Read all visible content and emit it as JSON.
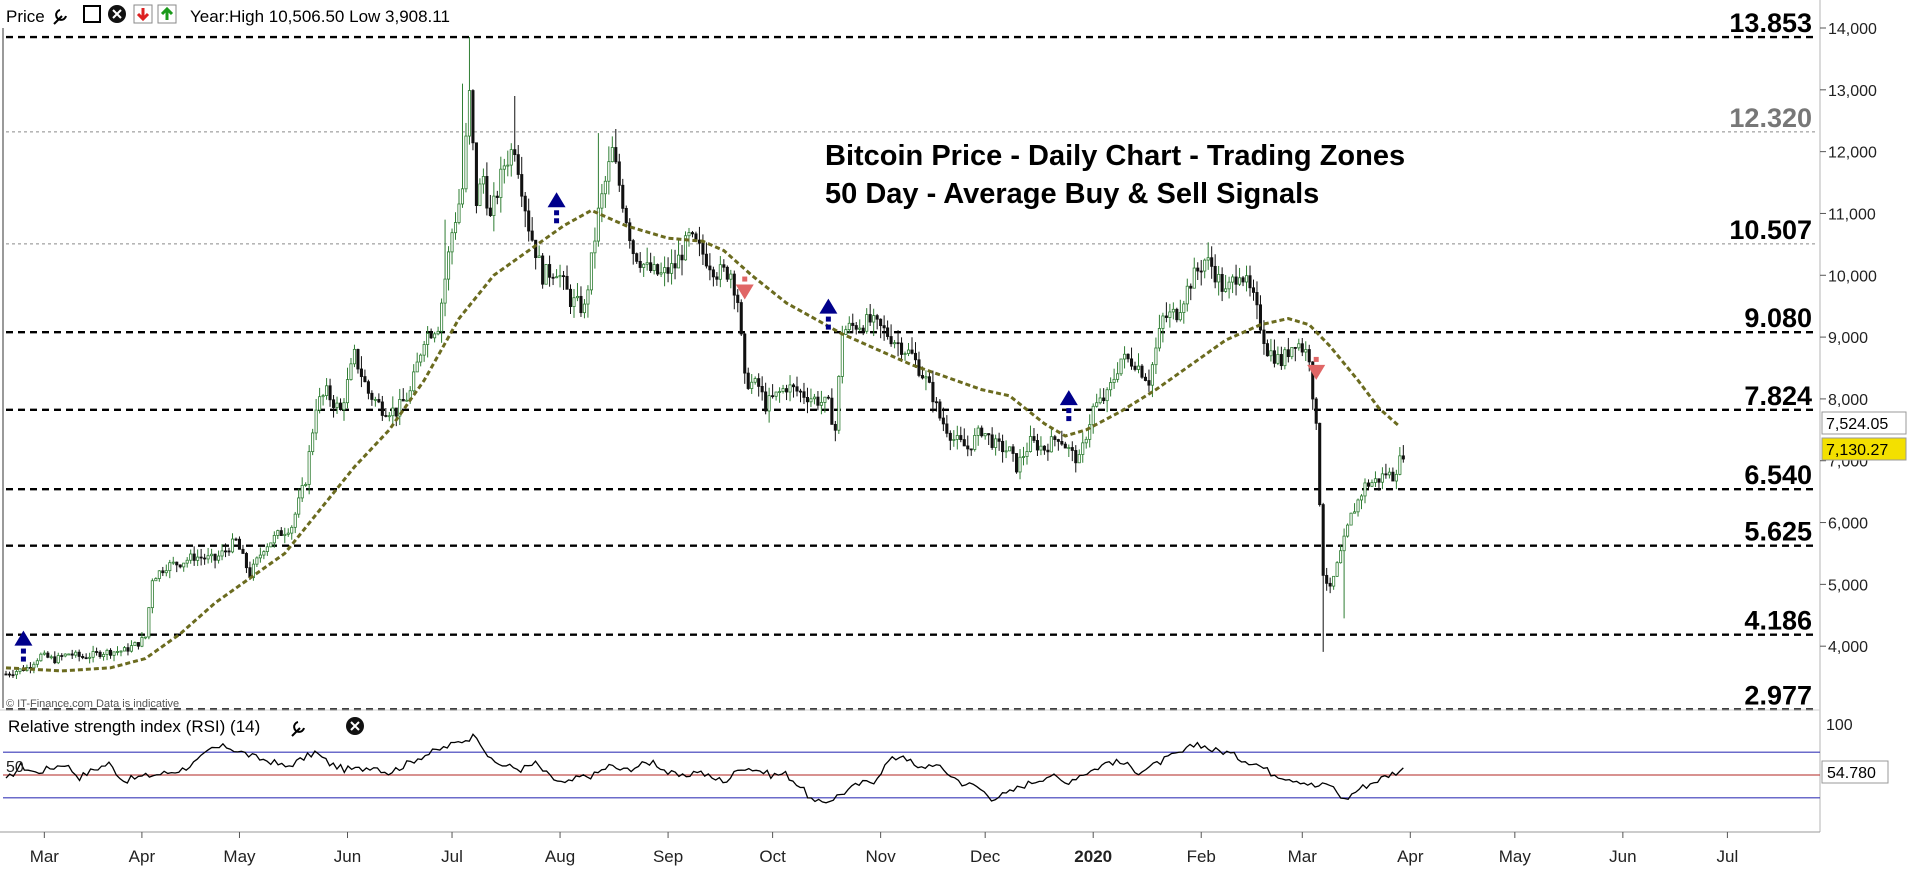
{
  "header": {
    "label": "Price",
    "year_text": "Year:High 10,506.50 Low 3,908.11"
  },
  "watermark": "© IT-Finance.com Data is indicative",
  "rsi": {
    "label": "Relative strength index (RSI) (14)",
    "mid_label": "50",
    "value_label": "54.780",
    "axis_top_label": "100",
    "overbought": 70,
    "oversold": 30,
    "series": [
      45,
      58,
      52,
      56,
      60,
      48,
      55,
      60,
      45,
      48,
      50,
      52,
      55,
      62,
      73,
      75,
      70,
      65,
      62,
      57,
      63,
      70,
      60,
      55,
      55,
      58,
      52,
      58,
      65,
      70,
      75,
      80,
      85,
      62,
      58,
      55,
      60,
      48,
      42,
      48,
      50,
      58,
      54,
      58,
      62,
      52,
      48,
      54,
      47,
      45,
      57,
      55,
      50,
      51,
      40,
      25,
      28,
      35,
      42,
      45,
      62,
      68,
      55,
      60,
      52,
      43,
      40,
      30,
      33,
      40,
      45,
      50,
      43,
      50,
      55,
      62,
      60,
      53,
      58,
      65,
      70,
      78,
      72,
      70,
      64,
      60,
      52,
      48,
      45,
      40,
      42,
      28,
      38,
      44,
      50,
      55
    ]
  },
  "chart_data": {
    "type": "candlestick",
    "title": "Bitcoin Price - Daily Chart - Trading Zones",
    "subtitle": "50 Day - Average Buy & Sell Signals",
    "ylim": [
      3000,
      14000
    ],
    "y_ticks": [
      "14,000",
      "13,000",
      "12,000",
      "11,000",
      "10,000",
      "9,000",
      "8,000",
      "7,000",
      "6,000",
      "5,000",
      "4,000"
    ],
    "y_tick_values": [
      14000,
      13000,
      12000,
      11000,
      10000,
      9000,
      8000,
      7000,
      6000,
      5000,
      4000
    ],
    "x_months": [
      "Mar",
      "Apr",
      "May",
      "Jun",
      "Jul",
      "Aug",
      "Sep",
      "Oct",
      "Nov",
      "Dec",
      "2020",
      "Feb",
      "Mar",
      "Apr",
      "May",
      "Jun",
      "Jul"
    ],
    "x_month_index": [
      11,
      39,
      67,
      98,
      128,
      159,
      190,
      220,
      251,
      281,
      312,
      343,
      372,
      403,
      433,
      464,
      494
    ],
    "x_total": 520,
    "last_index": 401,
    "zones": [
      {
        "label": "13.853",
        "value": 13853,
        "style": "major",
        "color": "#000000"
      },
      {
        "label": "12.320",
        "value": 12320,
        "style": "minor",
        "color": "#777777"
      },
      {
        "label": "10.507",
        "value": 10507,
        "style": "minor",
        "color": "#000000"
      },
      {
        "label": "9.080",
        "value": 9080,
        "style": "major",
        "color": "#000000"
      },
      {
        "label": "7.824",
        "value": 7824,
        "style": "major",
        "color": "#000000"
      },
      {
        "label": "6.540",
        "value": 6540,
        "style": "major",
        "color": "#000000"
      },
      {
        "label": "5.625",
        "value": 5625,
        "style": "major",
        "color": "#000000"
      },
      {
        "label": "4.186",
        "value": 4186,
        "style": "major",
        "color": "#000000"
      },
      {
        "label": "2.977",
        "value": 2977,
        "style": "major",
        "color": "#000000"
      }
    ],
    "price_points": [
      [
        0,
        3550
      ],
      [
        6,
        3650
      ],
      [
        10,
        3850
      ],
      [
        14,
        3780
      ],
      [
        18,
        3880
      ],
      [
        22,
        3820
      ],
      [
        28,
        3900
      ],
      [
        34,
        3930
      ],
      [
        38,
        4050
      ],
      [
        40,
        4150
      ],
      [
        42,
        5100
      ],
      [
        46,
        5300
      ],
      [
        50,
        5350
      ],
      [
        54,
        5450
      ],
      [
        60,
        5400
      ],
      [
        66,
        5700
      ],
      [
        70,
        5150
      ],
      [
        74,
        5600
      ],
      [
        78,
        5800
      ],
      [
        82,
        5950
      ],
      [
        86,
        6700
      ],
      [
        89,
        7900
      ],
      [
        92,
        8100
      ],
      [
        96,
        7800
      ],
      [
        100,
        8700
      ],
      [
        104,
        8100
      ],
      [
        108,
        7850
      ],
      [
        112,
        7800
      ],
      [
        116,
        8100
      ],
      [
        120,
        9000
      ],
      [
        124,
        9200
      ],
      [
        128,
        10700
      ],
      [
        131,
        11400
      ],
      [
        133,
        12900
      ],
      [
        135,
        11200
      ],
      [
        137,
        11600
      ],
      [
        139,
        10900
      ],
      [
        143,
        11800
      ],
      [
        146,
        12100
      ],
      [
        150,
        10800
      ],
      [
        154,
        10000
      ],
      [
        158,
        10100
      ],
      [
        162,
        9600
      ],
      [
        166,
        9450
      ],
      [
        170,
        11000
      ],
      [
        172,
        11500
      ],
      [
        174,
        12000
      ],
      [
        177,
        11200
      ],
      [
        180,
        10400
      ],
      [
        184,
        10100
      ],
      [
        188,
        10000
      ],
      [
        192,
        10150
      ],
      [
        196,
        10600
      ],
      [
        200,
        10350
      ],
      [
        204,
        10050
      ],
      [
        208,
        10050
      ],
      [
        210,
        9600
      ],
      [
        212,
        8300
      ],
      [
        216,
        8200
      ],
      [
        218,
        7900
      ],
      [
        224,
        8200
      ],
      [
        228,
        8100
      ],
      [
        232,
        8000
      ],
      [
        236,
        7900
      ],
      [
        238,
        7500
      ],
      [
        240,
        9100
      ],
      [
        244,
        9200
      ],
      [
        248,
        9250
      ],
      [
        252,
        9100
      ],
      [
        256,
        8900
      ],
      [
        260,
        8700
      ],
      [
        264,
        8300
      ],
      [
        266,
        8050
      ],
      [
        268,
        7700
      ],
      [
        272,
        7350
      ],
      [
        276,
        7200
      ],
      [
        280,
        7500
      ],
      [
        284,
        7250
      ],
      [
        288,
        7150
      ],
      [
        290,
        6900
      ],
      [
        294,
        7300
      ],
      [
        298,
        7200
      ],
      [
        302,
        7400
      ],
      [
        306,
        7100
      ],
      [
        308,
        7000
      ],
      [
        312,
        7850
      ],
      [
        316,
        8050
      ],
      [
        320,
        8650
      ],
      [
        324,
        8600
      ],
      [
        328,
        8300
      ],
      [
        332,
        9300
      ],
      [
        336,
        9400
      ],
      [
        340,
        9900
      ],
      [
        344,
        10250
      ],
      [
        346,
        10150
      ],
      [
        350,
        9700
      ],
      [
        354,
        10100
      ],
      [
        358,
        9600
      ],
      [
        362,
        8800
      ],
      [
        366,
        8600
      ],
      [
        370,
        8950
      ],
      [
        374,
        8700
      ],
      [
        376,
        7500
      ],
      [
        378,
        5200
      ],
      [
        380,
        4900
      ],
      [
        382,
        5300
      ],
      [
        386,
        6100
      ],
      [
        390,
        6600
      ],
      [
        394,
        6700
      ],
      [
        396,
        6800
      ],
      [
        398,
        6750
      ],
      [
        401,
        7130
      ]
    ],
    "moving_average_50": [
      [
        0,
        3650
      ],
      [
        16,
        3600
      ],
      [
        30,
        3650
      ],
      [
        40,
        3800
      ],
      [
        50,
        4200
      ],
      [
        60,
        4700
      ],
      [
        70,
        5100
      ],
      [
        80,
        5500
      ],
      [
        90,
        6200
      ],
      [
        100,
        6900
      ],
      [
        110,
        7500
      ],
      [
        120,
        8300
      ],
      [
        130,
        9300
      ],
      [
        140,
        10000
      ],
      [
        150,
        10400
      ],
      [
        160,
        10800
      ],
      [
        168,
        11050
      ],
      [
        178,
        10800
      ],
      [
        190,
        10600
      ],
      [
        200,
        10550
      ],
      [
        206,
        10400
      ],
      [
        214,
        10000
      ],
      [
        224,
        9550
      ],
      [
        240,
        9050
      ],
      [
        250,
        8800
      ],
      [
        260,
        8550
      ],
      [
        270,
        8350
      ],
      [
        280,
        8150
      ],
      [
        288,
        8050
      ],
      [
        298,
        7600
      ],
      [
        304,
        7400
      ],
      [
        310,
        7500
      ],
      [
        320,
        7800
      ],
      [
        330,
        8150
      ],
      [
        340,
        8550
      ],
      [
        350,
        8950
      ],
      [
        360,
        9200
      ],
      [
        368,
        9300
      ],
      [
        374,
        9200
      ],
      [
        380,
        8850
      ],
      [
        388,
        8300
      ],
      [
        394,
        7850
      ],
      [
        400,
        7550
      ]
    ],
    "buy_signals": [
      {
        "index": 5,
        "price": 4010
      },
      {
        "index": 158,
        "price": 11100
      },
      {
        "index": 236,
        "price": 9380
      },
      {
        "index": 305,
        "price": 7900
      }
    ],
    "sell_signals": [
      {
        "index": 212,
        "price": 9850
      },
      {
        "index": 376,
        "price": 8550
      }
    ],
    "last_price_label": "7,130.27",
    "ma_value_label": "7,524.05",
    "last_price": 7130.27,
    "ma_value": 7524.05
  },
  "colors": {
    "bull_candle": "#2e7d32",
    "bear_candle": "#111111",
    "ma_line": "#6b6b1f",
    "buy_arrow": "#00008b",
    "sell_arrow": "#e06666",
    "rsi_line": "#000000",
    "rsi_upper": "#3a3ab8",
    "rsi_mid": "#c0504d",
    "last_price_bg": "#f3e000",
    "grid_line": "#000000"
  }
}
